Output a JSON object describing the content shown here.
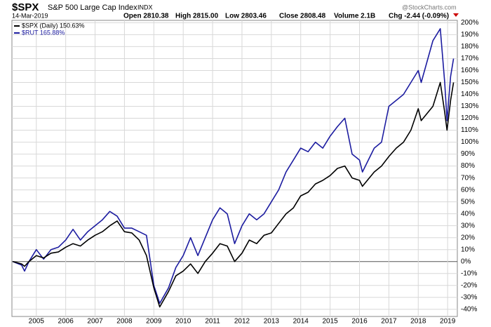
{
  "chart_data": {
    "type": "line",
    "title": "$SPX",
    "subtitle": "S&P 500 Large Cap Index",
    "exchange": "INDX",
    "date": "14-Mar-2019",
    "quote": [
      "Open 2810.38",
      "High 2815.00",
      "Low 2803.46",
      "Close 2808.48",
      "Volume 2.1B",
      "Chg -2.44 (-0.09%)"
    ],
    "source": "@StockCharts.com",
    "x": [
      2004.2,
      2004.5,
      2004.6,
      2004.75,
      2005.0,
      2005.25,
      2005.5,
      2005.75,
      2006.0,
      2006.25,
      2006.5,
      2006.75,
      2007.0,
      2007.25,
      2007.5,
      2007.75,
      2008.0,
      2008.25,
      2008.5,
      2008.75,
      2009.0,
      2009.2,
      2009.5,
      2009.75,
      2010.0,
      2010.25,
      2010.5,
      2010.75,
      2011.0,
      2011.25,
      2011.5,
      2011.75,
      2012.0,
      2012.25,
      2012.5,
      2012.75,
      2013.0,
      2013.25,
      2013.5,
      2013.75,
      2014.0,
      2014.25,
      2014.5,
      2014.75,
      2015.0,
      2015.25,
      2015.5,
      2015.75,
      2016.0,
      2016.1,
      2016.5,
      2016.75,
      2017.0,
      2017.25,
      2017.5,
      2017.75,
      2018.0,
      2018.1,
      2018.5,
      2018.75,
      2018.9,
      2018.98,
      2019.1,
      2019.2
    ],
    "series": [
      {
        "name": "$SPX (Daily) 150.63%",
        "color": "#000000",
        "values": [
          0,
          -2,
          -4,
          0,
          5,
          3,
          7,
          8,
          12,
          15,
          13,
          18,
          22,
          25,
          30,
          34,
          25,
          24,
          18,
          5,
          -22,
          -38,
          -25,
          -12,
          -8,
          -2,
          -10,
          0,
          7,
          15,
          13,
          0,
          7,
          18,
          15,
          22,
          24,
          32,
          40,
          45,
          55,
          58,
          65,
          68,
          72,
          78,
          80,
          70,
          68,
          63,
          75,
          80,
          88,
          95,
          100,
          110,
          128,
          118,
          130,
          150,
          125,
          110,
          135,
          150
        ]
      },
      {
        "name": "$RUT 165.88%",
        "color": "#1c1ca0",
        "values": [
          0,
          -3,
          -8,
          0,
          10,
          2,
          10,
          12,
          18,
          27,
          18,
          25,
          30,
          35,
          42,
          38,
          28,
          28,
          25,
          22,
          -20,
          -35,
          -22,
          -5,
          5,
          20,
          5,
          20,
          35,
          45,
          40,
          15,
          30,
          40,
          35,
          40,
          50,
          60,
          75,
          85,
          95,
          92,
          100,
          95,
          105,
          113,
          120,
          90,
          85,
          75,
          95,
          100,
          130,
          135,
          140,
          150,
          160,
          150,
          185,
          195,
          150,
          118,
          155,
          170
        ]
      }
    ],
    "xlim": [
      2004.17,
      2019.33
    ],
    "xticks": [
      2005,
      2006,
      2007,
      2008,
      2009,
      2010,
      2011,
      2012,
      2013,
      2014,
      2015,
      2016,
      2017,
      2018,
      2019
    ],
    "ylim": [
      -46,
      202
    ],
    "yticks": [
      {
        "value": -40,
        "label": "-40%"
      },
      {
        "value": -30,
        "label": "-30%"
      },
      {
        "value": -20,
        "label": "-20%"
      },
      {
        "value": -10,
        "label": "-10%"
      },
      {
        "value": 0,
        "label": "0%"
      },
      {
        "value": 10,
        "label": "10%"
      },
      {
        "value": 20,
        "label": "20%"
      },
      {
        "value": 30,
        "label": "30%"
      },
      {
        "value": 40,
        "label": "40%"
      },
      {
        "value": 50,
        "label": "50%"
      },
      {
        "value": 60,
        "label": "60%"
      },
      {
        "value": 70,
        "label": "70%"
      },
      {
        "value": 80,
        "label": "80%"
      },
      {
        "value": 90,
        "label": "90%"
      },
      {
        "value": 100,
        "label": "100%"
      },
      {
        "value": 110,
        "label": "110%"
      },
      {
        "value": 120,
        "label": "120%"
      },
      {
        "value": 130,
        "label": "130%"
      },
      {
        "value": 140,
        "label": "140%"
      },
      {
        "value": 150,
        "label": "150%"
      },
      {
        "value": 160,
        "label": "160%"
      },
      {
        "value": 170,
        "label": "170%"
      },
      {
        "value": 180,
        "label": "180%"
      },
      {
        "value": 190,
        "label": "190%"
      },
      {
        "value": 200,
        "label": "200%"
      }
    ],
    "grid": true
  }
}
